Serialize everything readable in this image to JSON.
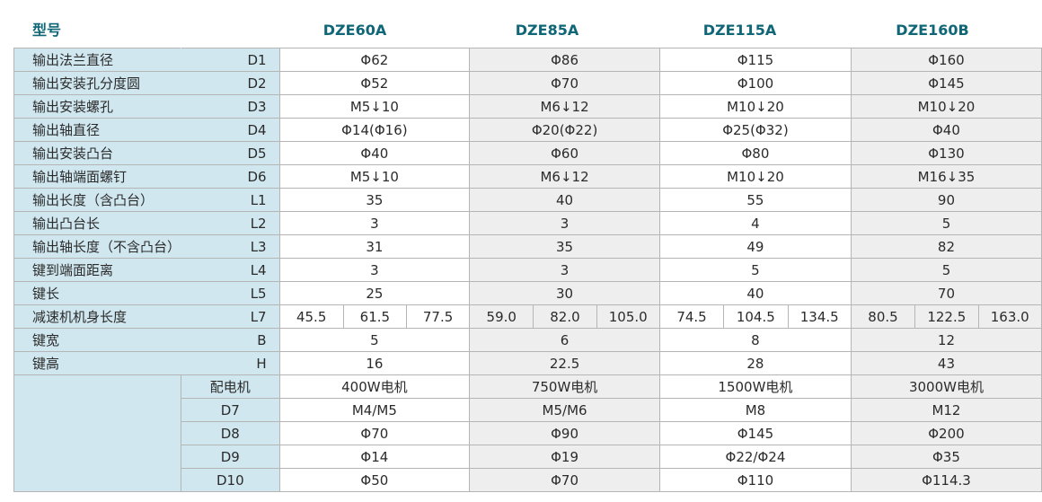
{
  "header": {
    "title": "型号",
    "models": [
      "DZE60A",
      "DZE85A",
      "DZE115A",
      "DZE160B"
    ]
  },
  "rows": [
    {
      "label": "输出法兰直径",
      "code": "D1",
      "values": [
        "Φ62",
        "Φ86",
        "Φ115",
        "Φ160"
      ]
    },
    {
      "label": "输出安装孔分度圆",
      "code": "D2",
      "values": [
        "Φ52",
        "Φ70",
        "Φ100",
        "Φ145"
      ]
    },
    {
      "label": "输出安装螺孔",
      "code": "D3",
      "values": [
        "M5↓10",
        "M6↓12",
        "M10↓20",
        "M10↓20"
      ]
    },
    {
      "label": "输出轴直径",
      "code": "D4",
      "values": [
        "Φ14(Φ16)",
        "Φ20(Φ22)",
        "Φ25(Φ32)",
        "Φ40"
      ]
    },
    {
      "label": "输出安装凸台",
      "code": "D5",
      "values": [
        "Φ40",
        "Φ60",
        "Φ80",
        "Φ130"
      ]
    },
    {
      "label": "输出轴端面螺钉",
      "code": "D6",
      "values": [
        "M5↓10",
        "M6↓12",
        "M10↓20",
        "M16↓35"
      ]
    },
    {
      "label": "输出长度（含凸台）",
      "code": "L1",
      "values": [
        "35",
        "40",
        "55",
        "90"
      ]
    },
    {
      "label": "输出凸台长",
      "code": "L2",
      "values": [
        "3",
        "3",
        "4",
        "5"
      ]
    },
    {
      "label": "输出轴长度（不含凸台）",
      "code": "L3",
      "values": [
        "31",
        "35",
        "49",
        "82"
      ]
    },
    {
      "label": "键到端面距离",
      "code": "L4",
      "values": [
        "3",
        "3",
        "5",
        "5"
      ]
    },
    {
      "label": "键长",
      "code": "L5",
      "values": [
        "25",
        "30",
        "40",
        "70"
      ]
    }
  ],
  "l7_row": {
    "label": "减速机机身长度",
    "code": "L7",
    "values": [
      [
        "45.5",
        "61.5",
        "77.5"
      ],
      [
        "59.0",
        "82.0",
        "105.0"
      ],
      [
        "74.5",
        "104.5",
        "134.5"
      ],
      [
        "80.5",
        "122.5",
        "163.0"
      ]
    ]
  },
  "rows_after": [
    {
      "label": "键宽",
      "code": "B",
      "values": [
        "5",
        "6",
        "8",
        "12"
      ]
    },
    {
      "label": "键高",
      "code": "H",
      "values": [
        "16",
        "22.5",
        "28",
        "43"
      ]
    }
  ],
  "motor_rows": [
    {
      "sub": "配电机",
      "values": [
        "400W电机",
        "750W电机",
        "1500W电机",
        "3000W电机"
      ]
    },
    {
      "sub": "D7",
      "values": [
        "M4/M5",
        "M5/M6",
        "M8",
        "M12"
      ]
    },
    {
      "sub": "D8",
      "values": [
        "Φ70",
        "Φ90",
        "Φ145",
        "Φ200"
      ]
    },
    {
      "sub": "D9",
      "values": [
        "Φ14",
        "Φ19",
        "Φ22/Φ24",
        "Φ35"
      ]
    },
    {
      "sub": "D10",
      "values": [
        "Φ50",
        "Φ70",
        "Φ110",
        "Φ114.3"
      ]
    }
  ],
  "colors": {
    "header_text": "#0f6677",
    "label_bg": "#d0e7ef",
    "col_white": "#ffffff",
    "col_gray": "#eeeeee",
    "border": "#b5b5b5"
  }
}
